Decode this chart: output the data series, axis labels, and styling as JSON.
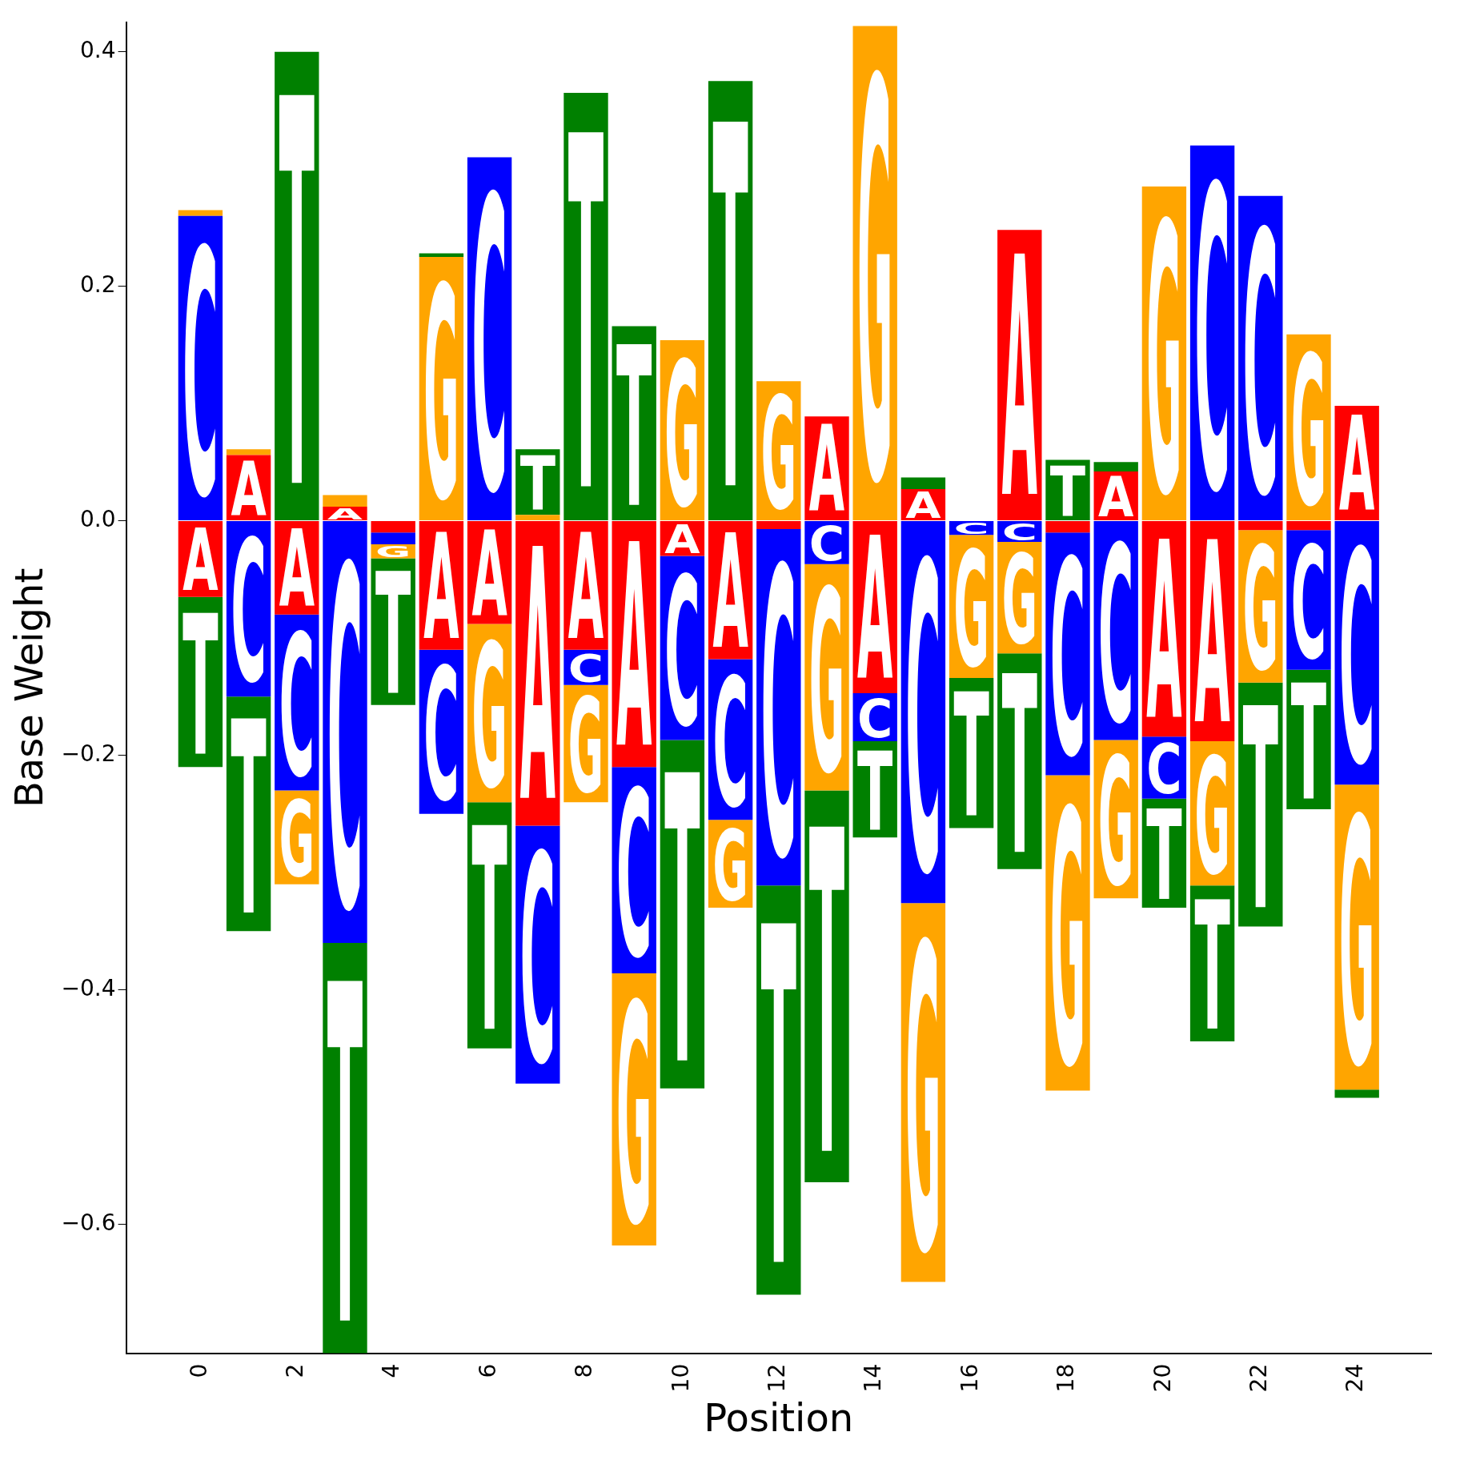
{
  "chart_data": {
    "type": "bar",
    "stacked": true,
    "xlabel": "Position",
    "ylabel": "Base Weight",
    "x": [
      0,
      1,
      2,
      3,
      4,
      5,
      6,
      7,
      8,
      9,
      10,
      11,
      12,
      13,
      14,
      15,
      16,
      17,
      18,
      19,
      20,
      21,
      22,
      23,
      24
    ],
    "series": [
      {
        "name": "A",
        "color": "#ff0000",
        "values": [
          -0.065,
          0.056,
          -0.08,
          0.012,
          -0.01,
          -0.11,
          -0.088,
          -0.26,
          -0.11,
          -0.21,
          -0.03,
          -0.118,
          -0.007,
          0.089,
          -0.147,
          0.027,
          null,
          0.248,
          -0.01,
          0.042,
          -0.184,
          -0.188,
          -0.008,
          -0.008,
          0.098
        ]
      },
      {
        "name": "C",
        "color": "#0000ff",
        "values": [
          0.26,
          -0.15,
          -0.15,
          -0.36,
          -0.01,
          -0.14,
          0.31,
          -0.22,
          -0.03,
          -0.176,
          -0.157,
          -0.137,
          -0.304,
          -0.037,
          -0.041,
          -0.326,
          -0.012,
          -0.018,
          -0.207,
          -0.187,
          -0.053,
          0.32,
          0.277,
          -0.119,
          -0.225
        ]
      },
      {
        "name": "G",
        "color": "#ffa500",
        "values": [
          0.005,
          0.005,
          -0.08,
          0.01,
          -0.012,
          0.225,
          -0.152,
          0.005,
          -0.1,
          -0.232,
          0.154,
          -0.075,
          0.119,
          -0.193,
          0.422,
          -0.323,
          -0.122,
          -0.095,
          -0.269,
          -0.135,
          0.285,
          -0.123,
          -0.13,
          0.159,
          -0.26
        ]
      },
      {
        "name": "T",
        "color": "#008000",
        "values": [
          -0.145,
          -0.2,
          0.4,
          -0.35,
          -0.125,
          0.003,
          -0.21,
          0.056,
          0.365,
          0.166,
          -0.297,
          0.375,
          -0.349,
          -0.334,
          -0.082,
          0.01,
          -0.128,
          -0.184,
          0.052,
          0.008,
          -0.093,
          -0.133,
          -0.208,
          -0.119,
          -0.007
        ]
      }
    ],
    "xlim": [
      -0.5,
      24.5
    ],
    "xticks": [
      0,
      2,
      4,
      6,
      8,
      10,
      12,
      14,
      16,
      18,
      20,
      22,
      24
    ],
    "ylim": [
      -0.71,
      0.425
    ],
    "yticks": [
      {
        "value": -0.6,
        "label": "−0.6"
      },
      {
        "value": -0.4,
        "label": "−0.4"
      },
      {
        "value": -0.2,
        "label": "−0.2"
      },
      {
        "value": 0,
        "label": "0.0"
      },
      {
        "value": 0.2,
        "label": "0.2"
      },
      {
        "value": 0.4,
        "label": "0.4"
      }
    ],
    "grid": false,
    "legend": false
  }
}
